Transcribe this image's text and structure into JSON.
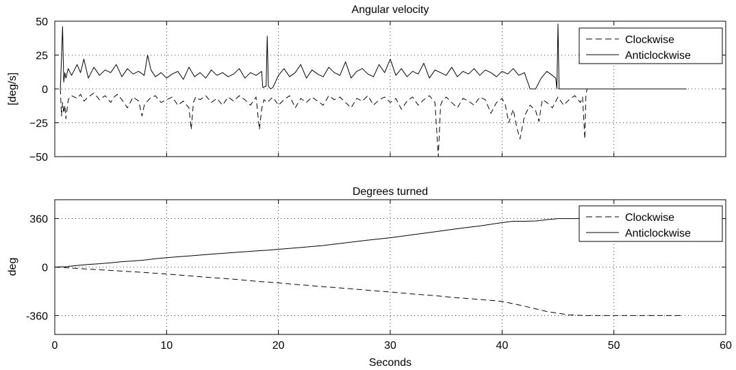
{
  "chart_data": [
    {
      "type": "line",
      "title": "Angular velocity",
      "xlabel": "",
      "ylabel": "[deg/s]",
      "xlim": [
        0,
        60
      ],
      "ylim": [
        -50,
        50
      ],
      "xticks": [
        0,
        10,
        20,
        30,
        40,
        50,
        60
      ],
      "xtick_labels": [
        "",
        "",
        "",
        "",
        "",
        "",
        ""
      ],
      "yticks": [
        -50,
        -25,
        0,
        25,
        50
      ],
      "ytick_labels": [
        "−50",
        "−25",
        "0",
        "25",
        "50"
      ],
      "grid": true,
      "legend_position": "top-right",
      "series": [
        {
          "name": "Clockwise",
          "style": "dashed",
          "x": [
            0.5,
            0.6,
            0.7,
            0.8,
            0.9,
            1.0,
            1.2,
            1.5,
            2.0,
            2.3,
            2.6,
            3.0,
            3.5,
            4.0,
            4.5,
            5.0,
            5.3,
            5.6,
            6.0,
            6.5,
            7.0,
            7.5,
            7.8,
            8.0,
            8.5,
            9.0,
            9.5,
            10.0,
            10.5,
            11.0,
            11.5,
            12.0,
            12.2,
            12.4,
            12.6,
            13.0,
            13.5,
            14.0,
            14.5,
            15.0,
            15.5,
            16.0,
            16.5,
            17.0,
            17.5,
            18.0,
            18.3,
            18.5,
            18.7,
            19.0,
            19.5,
            20.0,
            20.5,
            21.0,
            21.5,
            22.0,
            22.5,
            23.0,
            23.5,
            24.0,
            24.5,
            25.0,
            25.5,
            26.0,
            26.5,
            27.0,
            27.5,
            28.0,
            28.5,
            29.0,
            29.5,
            30.0,
            30.5,
            31.0,
            31.5,
            32.0,
            32.5,
            33.0,
            33.5,
            34.0,
            34.3,
            34.5,
            34.7,
            35.0,
            35.5,
            36.0,
            36.5,
            37.0,
            37.5,
            38.0,
            38.5,
            39.0,
            39.5,
            40.0,
            40.3,
            40.6,
            41.0,
            41.3,
            41.6,
            42.0,
            42.5,
            43.0,
            43.3,
            43.6,
            44.0,
            44.5,
            45.0,
            45.5,
            46.0,
            46.5,
            47.0,
            47.2,
            47.4,
            47.5,
            47.6,
            48.0,
            50.0,
            55.0
          ],
          "y": [
            0,
            -20,
            -10,
            -18,
            -12,
            -22,
            -8,
            -5,
            -7,
            -4,
            -9,
            -6,
            -3,
            -8,
            -5,
            -10,
            -6,
            -4,
            -8,
            -14,
            -6,
            -9,
            -20,
            -12,
            -7,
            -5,
            -10,
            -8,
            -6,
            -12,
            -9,
            -14,
            -30,
            -10,
            -6,
            -8,
            -5,
            -10,
            -7,
            -12,
            -6,
            -9,
            -5,
            -8,
            -12,
            -6,
            -30,
            -15,
            -8,
            -10,
            -6,
            -12,
            -8,
            -5,
            -14,
            -7,
            -10,
            -6,
            -9,
            -12,
            -5,
            -8,
            -6,
            -10,
            -14,
            -7,
            -9,
            -5,
            -12,
            -8,
            -6,
            -10,
            -7,
            -15,
            -9,
            -6,
            -12,
            -8,
            -5,
            -10,
            -50,
            -12,
            -8,
            -6,
            -10,
            -14,
            -7,
            -9,
            -12,
            -6,
            -8,
            -18,
            -10,
            -7,
            -12,
            -25,
            -15,
            -28,
            -37,
            -20,
            -12,
            -16,
            -24,
            -8,
            -10,
            -14,
            -6,
            -12,
            -8,
            -5,
            -10,
            -6,
            -37,
            -4,
            0,
            0,
            0,
            0
          ]
        },
        {
          "name": "Anticlockwise",
          "style": "solid",
          "x": [
            0.5,
            0.7,
            0.8,
            0.9,
            1.0,
            1.2,
            1.5,
            2.0,
            2.3,
            2.6,
            3.0,
            3.5,
            4.0,
            4.5,
            5.0,
            5.5,
            6.0,
            6.5,
            7.0,
            7.5,
            8.0,
            8.3,
            8.6,
            9.0,
            9.5,
            10.0,
            10.5,
            11.0,
            11.5,
            12.0,
            12.5,
            13.0,
            13.5,
            14.0,
            14.5,
            15.0,
            15.5,
            16.0,
            16.5,
            17.0,
            17.5,
            18.0,
            18.5,
            18.6,
            18.9,
            19.0,
            19.1,
            19.3,
            19.5,
            20.0,
            20.5,
            21.0,
            21.5,
            22.0,
            22.5,
            23.0,
            23.5,
            24.0,
            24.5,
            25.0,
            25.5,
            26.0,
            26.5,
            27.0,
            27.5,
            28.0,
            28.5,
            29.0,
            29.5,
            30.0,
            30.5,
            31.0,
            31.5,
            32.0,
            32.5,
            33.0,
            33.5,
            34.0,
            34.5,
            35.0,
            35.5,
            36.0,
            36.5,
            37.0,
            37.5,
            38.0,
            38.5,
            39.0,
            39.5,
            40.0,
            40.5,
            41.0,
            41.5,
            42.0,
            42.5,
            43.0,
            43.5,
            44.0,
            44.5,
            44.8,
            44.9,
            45.0,
            45.1,
            45.5,
            50.0,
            55.0,
            56.5
          ],
          "y": [
            0,
            46,
            5,
            12,
            8,
            15,
            10,
            18,
            12,
            22,
            8,
            16,
            10,
            14,
            12,
            18,
            9,
            15,
            11,
            13,
            10,
            25,
            14,
            9,
            12,
            8,
            11,
            13,
            7,
            16,
            9,
            12,
            8,
            14,
            10,
            12,
            9,
            11,
            15,
            8,
            12,
            10,
            13,
            1,
            2,
            39,
            2,
            0,
            1,
            10,
            15,
            9,
            12,
            18,
            8,
            14,
            11,
            9,
            16,
            12,
            10,
            20,
            8,
            13,
            15,
            11,
            9,
            18,
            12,
            22,
            10,
            15,
            9,
            13,
            11,
            19,
            8,
            14,
            12,
            10,
            16,
            9,
            13,
            11,
            15,
            10,
            14,
            12,
            9,
            13,
            11,
            15,
            10,
            12,
            0,
            0,
            8,
            13,
            10,
            8,
            0,
            48,
            0,
            0,
            0,
            0,
            0
          ]
        }
      ]
    },
    {
      "type": "line",
      "title": "Degrees turned",
      "xlabel": "Seconds",
      "ylabel": "deg",
      "xlim": [
        0,
        60
      ],
      "ylim": [
        -500,
        500
      ],
      "xticks": [
        0,
        10,
        20,
        30,
        40,
        50,
        60
      ],
      "xtick_labels": [
        "0",
        "10",
        "20",
        "30",
        "40",
        "50",
        "60"
      ],
      "yticks": [
        -360,
        0,
        360
      ],
      "ytick_labels": [
        "-360",
        "0",
        "360"
      ],
      "grid": true,
      "legend_position": "top-right",
      "series": [
        {
          "name": "Clockwise",
          "style": "dashed",
          "x": [
            0,
            1,
            3,
            6,
            8,
            10,
            12,
            14,
            16,
            18,
            20,
            22,
            24,
            26,
            28,
            30,
            32,
            34,
            36,
            38,
            40,
            42,
            44,
            46,
            47.5,
            50,
            56
          ],
          "y": [
            0,
            -5,
            -15,
            -30,
            -40,
            -52,
            -65,
            -78,
            -90,
            -105,
            -118,
            -132,
            -145,
            -158,
            -172,
            -185,
            -200,
            -212,
            -228,
            -240,
            -255,
            -290,
            -330,
            -355,
            -360,
            -360,
            -360
          ]
        },
        {
          "name": "Anticlockwise",
          "style": "solid",
          "x": [
            0,
            1,
            2,
            3,
            4,
            5,
            6,
            7,
            8,
            9,
            10,
            12,
            14,
            16,
            18,
            19,
            20,
            22,
            24,
            26,
            28,
            30,
            32,
            34,
            36,
            38,
            40,
            41,
            42,
            43,
            44,
            45,
            50,
            56.5
          ],
          "y": [
            0,
            3,
            12,
            20,
            25,
            32,
            40,
            45,
            52,
            62,
            70,
            82,
            96,
            108,
            120,
            125,
            132,
            145,
            160,
            180,
            200,
            218,
            240,
            262,
            285,
            305,
            330,
            340,
            340,
            342,
            352,
            360,
            360,
            360
          ]
        }
      ]
    }
  ]
}
